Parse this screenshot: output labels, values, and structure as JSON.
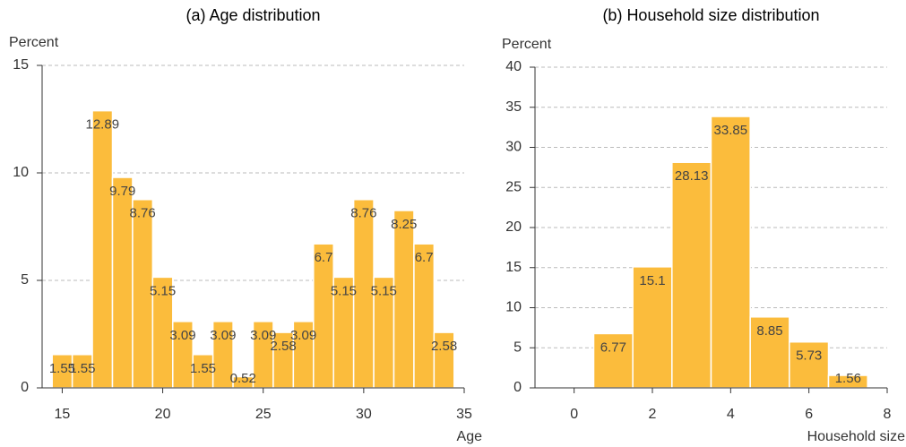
{
  "chart_data": [
    {
      "type": "histogram",
      "title": "(a) Age distribution",
      "y_label": "Percent",
      "x_label": "Age",
      "bins": [
        14.5,
        15.5,
        16.5,
        17.5,
        18.5,
        19.5,
        20.5,
        21.5,
        22.5,
        23.5,
        24.5,
        25.5,
        26.5,
        27.5,
        28.5,
        29.5,
        30.5,
        31.5,
        32.5,
        33.5,
        34.5
      ],
      "values": [
        1.55,
        1.55,
        12.89,
        9.79,
        8.76,
        5.15,
        3.09,
        1.55,
        3.09,
        0.52,
        3.09,
        2.58,
        3.09,
        6.7,
        5.15,
        8.76,
        5.15,
        8.25,
        6.7,
        2.58
      ],
      "color": "#fbbc3c",
      "xlim": [
        14,
        35
      ],
      "ylim": [
        0,
        15
      ],
      "xticks": [
        15,
        20,
        25,
        30,
        35
      ],
      "yticks": [
        0,
        5,
        10,
        15
      ],
      "grid": true
    },
    {
      "type": "histogram",
      "title": "(b) Household size distribution",
      "y_label": "Percent",
      "x_label": "Household size",
      "bins": [
        0.5,
        1.5,
        2.5,
        3.5,
        4.5,
        5.5,
        6.5,
        7.5
      ],
      "values": [
        6.77,
        15.1,
        28.13,
        33.85,
        8.85,
        5.73,
        1.56
      ],
      "color": "#fbbc3c",
      "xlim": [
        -1,
        8
      ],
      "ylim": [
        0,
        40
      ],
      "xticks": [
        0,
        2,
        4,
        6,
        8
      ],
      "yticks": [
        0,
        5,
        10,
        15,
        20,
        25,
        30,
        35,
        40
      ],
      "grid": true
    }
  ]
}
